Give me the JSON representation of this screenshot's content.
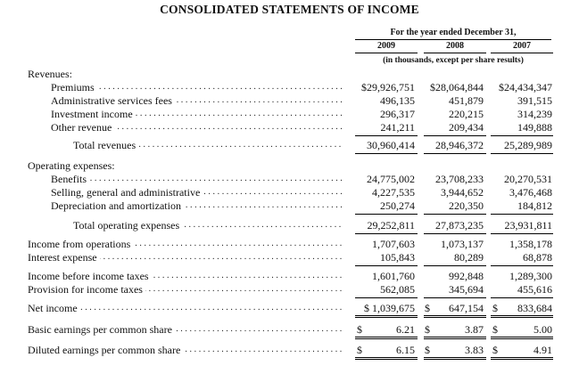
{
  "title": "CONSOLIDATED STATEMENTS OF INCOME",
  "header": {
    "period": "For the year ended December 31,",
    "years": [
      "2009",
      "2008",
      "2007"
    ],
    "units": "(in thousands, except per share results)"
  },
  "rows": [
    {
      "label": "Revenues:"
    },
    {
      "label": "Premiums",
      "v1": "$29,926,751",
      "v2": "$28,064,844",
      "v3": "$24,434,347"
    },
    {
      "label": "Administrative services fees",
      "v1": "496,135",
      "v2": "451,879",
      "v3": "391,515"
    },
    {
      "label": "Investment income",
      "v1": "296,317",
      "v2": "220,215",
      "v3": "314,239"
    },
    {
      "label": "Other revenue",
      "v1": "241,211",
      "v2": "209,434",
      "v3": "149,888"
    },
    {
      "label": "Total revenues",
      "v1": "30,960,414",
      "v2": "28,946,372",
      "v3": "25,289,989"
    },
    {
      "label": "Operating expenses:"
    },
    {
      "label": "Benefits",
      "v1": "24,775,002",
      "v2": "23,708,233",
      "v3": "20,270,531"
    },
    {
      "label": "Selling, general and administrative",
      "v1": "4,227,535",
      "v2": "3,944,652",
      "v3": "3,476,468"
    },
    {
      "label": "Depreciation and amortization",
      "v1": "250,274",
      "v2": "220,350",
      "v3": "184,812"
    },
    {
      "label": "Total operating expenses",
      "v1": "29,252,811",
      "v2": "27,873,235",
      "v3": "23,931,811"
    },
    {
      "label": "Income from operations",
      "v1": "1,707,603",
      "v2": "1,073,137",
      "v3": "1,358,178"
    },
    {
      "label": "Interest expense",
      "v1": "105,843",
      "v2": "80,289",
      "v3": "68,878"
    },
    {
      "label": "Income before income taxes",
      "v1": "1,601,760",
      "v2": "992,848",
      "v3": "1,289,300"
    },
    {
      "label": "Provision for income taxes",
      "v1": "562,085",
      "v2": "345,694",
      "v3": "455,616"
    },
    {
      "label": "Net income",
      "v1": "$ 1,039,675",
      "v2": "647,154",
      "v3": "833,684",
      "d2": "$",
      "d3": "$"
    },
    {
      "label": "Basic earnings per common share",
      "v1": "6.21",
      "v2": "3.87",
      "v3": "5.00",
      "d1": "$",
      "d2": "$",
      "d3": "$"
    },
    {
      "label": "Diluted earnings per common share",
      "v1": "6.15",
      "v2": "3.83",
      "v3": "4.91",
      "d1": "$",
      "d2": "$",
      "d3": "$"
    }
  ]
}
